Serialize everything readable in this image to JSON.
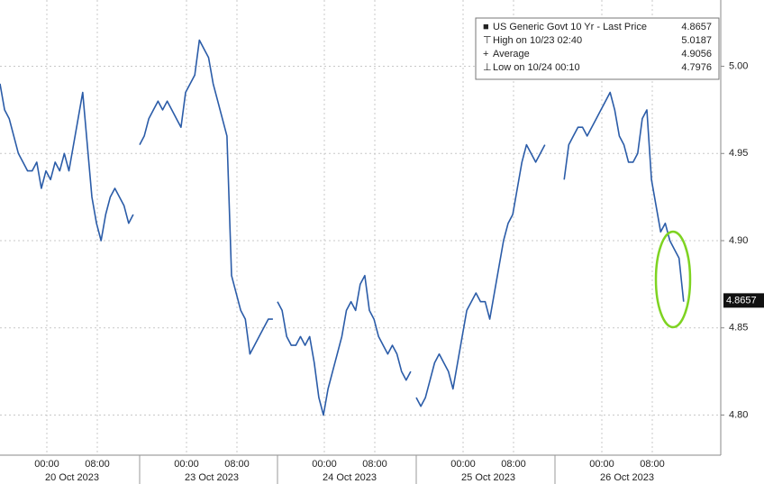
{
  "chart_data": {
    "type": "line",
    "color": "#2b5ca8",
    "ylim": [
      4.777,
      5.038
    ],
    "yticks": [
      {
        "value": 4.8,
        "label": "4.80"
      },
      4.85,
      {
        "value": 4.9,
        "label": "4.90"
      },
      4.95,
      {
        "value": 5.0,
        "label": "5.00"
      }
    ],
    "grid": true,
    "legend": [
      {
        "label": "US Generic Govt 10 Yr - Last Price",
        "value": 4.8657
      },
      {
        "label": "High on 10/23 02:40",
        "value": 5.0187
      },
      {
        "label": "Average",
        "value": 4.9056
      },
      {
        "label": "Low on 10/24 00:10",
        "value": 4.7976
      }
    ],
    "days": [
      {
        "label": "20 Oct 2023",
        "times": [
          "00:00",
          "08:00"
        ],
        "values": [
          4.99,
          4.975,
          4.97,
          4.96,
          4.95,
          4.945,
          4.94,
          4.94,
          4.945,
          4.93,
          4.94,
          4.935,
          4.945,
          4.94,
          4.95,
          4.94,
          4.955,
          4.97,
          4.985,
          4.955,
          4.925,
          4.91,
          4.9,
          4.915,
          4.925,
          4.93,
          4.925,
          4.92,
          4.91,
          4.915
        ]
      },
      {
        "label": "23 Oct 2023",
        "times": [
          "00:00",
          "08:00"
        ],
        "values": [
          4.955,
          4.96,
          4.97,
          4.975,
          4.98,
          4.975,
          4.98,
          4.975,
          4.97,
          4.965,
          4.985,
          4.99,
          4.995,
          5.015,
          5.01,
          5.005,
          4.99,
          4.98,
          4.97,
          4.96,
          4.88,
          4.87,
          4.86,
          4.855,
          4.835,
          4.84,
          4.845,
          4.85,
          4.855,
          4.855
        ]
      },
      {
        "label": "24 Oct 2023",
        "times": [
          "00:00",
          "08:00"
        ],
        "values": [
          4.865,
          4.86,
          4.845,
          4.84,
          4.84,
          4.845,
          4.84,
          4.845,
          4.83,
          4.81,
          4.8,
          4.815,
          4.825,
          4.835,
          4.845,
          4.86,
          4.865,
          4.86,
          4.875,
          4.88,
          4.86,
          4.855,
          4.845,
          4.84,
          4.835,
          4.84,
          4.835,
          4.825,
          4.82,
          4.825
        ]
      },
      {
        "label": "25 Oct 2023",
        "times": [
          "00:00",
          "08:00"
        ],
        "values": [
          4.81,
          4.805,
          4.81,
          4.82,
          4.83,
          4.835,
          4.83,
          4.825,
          4.815,
          4.83,
          4.845,
          4.86,
          4.865,
          4.87,
          4.865,
          4.865,
          4.855,
          4.87,
          4.885,
          4.9,
          4.91,
          4.915,
          4.93,
          4.945,
          4.955,
          4.95,
          4.945,
          4.95,
          4.955
        ]
      },
      {
        "label": "26 Oct 2023",
        "times": [
          "00:00",
          "08:00"
        ],
        "values": [
          null,
          null,
          4.935,
          4.955,
          4.96,
          4.965,
          4.965,
          4.96,
          4.965,
          4.97,
          4.975,
          4.98,
          4.985,
          4.975,
          4.96,
          4.955,
          4.945,
          4.945,
          4.95,
          4.97,
          4.975,
          4.935,
          4.92,
          4.905,
          4.91,
          4.9,
          4.895,
          4.89,
          4.865
        ]
      }
    ]
  }
}
